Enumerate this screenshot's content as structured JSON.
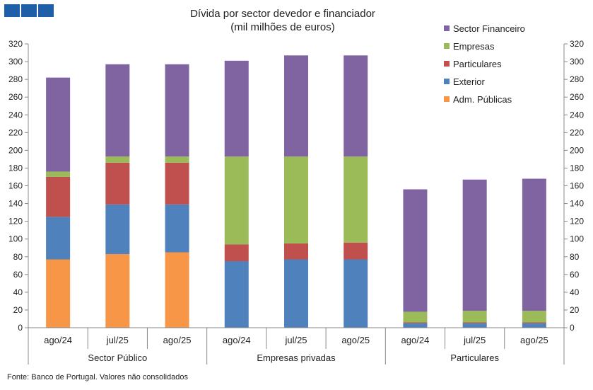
{
  "chart_data": {
    "type": "bar",
    "stacked": true,
    "title": "Dívida por sector devedor e financiador",
    "subtitle": "(mil milhões de euros)",
    "groups": [
      {
        "label": "Sector Público",
        "categories": [
          "ago/24",
          "jul/25",
          "ago/25"
        ]
      },
      {
        "label": "Empresas privadas",
        "categories": [
          "ago/24",
          "jul/25",
          "ago/25"
        ]
      },
      {
        "label": "Particulares",
        "categories": [
          "ago/24",
          "jul/25",
          "ago/25"
        ]
      }
    ],
    "categories": [
      "ago/24",
      "jul/25",
      "ago/25",
      "ago/24",
      "jul/25",
      "ago/25",
      "ago/24",
      "jul/25",
      "ago/25"
    ],
    "series": [
      {
        "name": "Adm. Públicas",
        "color": "#F79646",
        "values": [
          77,
          83,
          85,
          0,
          0,
          0,
          0,
          0,
          0
        ]
      },
      {
        "name": "Exterior",
        "color": "#4F81BD",
        "values": [
          48,
          56,
          54,
          75,
          77,
          77,
          5,
          5,
          5
        ]
      },
      {
        "name": "Particulares",
        "color": "#C0504D",
        "values": [
          45,
          47,
          47,
          19,
          18,
          19,
          1,
          1,
          1
        ]
      },
      {
        "name": "Empresas",
        "color": "#9BBB59",
        "values": [
          6,
          7,
          7,
          99,
          98,
          97,
          12,
          13,
          13
        ]
      },
      {
        "name": "Sector Financeiro",
        "color": "#8064A2",
        "values": [
          106,
          104,
          104,
          108,
          114,
          114,
          138,
          148,
          149
        ]
      }
    ],
    "ylim": [
      0,
      320
    ],
    "yticks": [
      0,
      20,
      40,
      60,
      80,
      100,
      120,
      140,
      160,
      180,
      200,
      220,
      240,
      260,
      280,
      300,
      320
    ],
    "grid": false,
    "legend_position": "top-right",
    "secondary_axis": true
  },
  "source_note": "Fonte: Banco de Portugal. Valores não consolidados",
  "logo_color": "#1F5FA8"
}
